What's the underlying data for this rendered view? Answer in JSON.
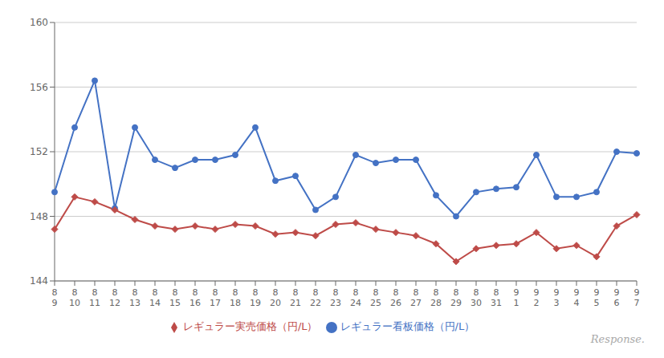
{
  "chart_data": {
    "type": "line",
    "categories": [
      "8\n9",
      "8\n10",
      "8\n11",
      "8\n12",
      "8\n13",
      "8\n14",
      "8\n15",
      "8\n16",
      "8\n17",
      "8\n18",
      "8\n19",
      "8\n20",
      "8\n21",
      "8\n22",
      "8\n23",
      "8\n24",
      "8\n25",
      "8\n26",
      "8\n27",
      "8\n28",
      "8\n29",
      "8\n30",
      "8\n31",
      "9\n1",
      "9\n2",
      "9\n3",
      "9\n4",
      "9\n5",
      "9\n6",
      "9\n7"
    ],
    "series": [
      {
        "name": "レギュラー看板価格（円/L）",
        "color": "#4472C4",
        "marker": "circle",
        "values": [
          149.5,
          153.5,
          156.4,
          148.5,
          153.5,
          151.5,
          151.0,
          151.5,
          151.5,
          151.8,
          153.5,
          150.2,
          150.5,
          148.4,
          149.2,
          151.8,
          151.3,
          151.5,
          151.5,
          149.3,
          148.0,
          149.5,
          149.7,
          149.8,
          151.8,
          149.2,
          149.2,
          149.5,
          152.0,
          151.9
        ]
      },
      {
        "name": "レギュラー実売価格（円/L）",
        "color": "#BE4B48",
        "marker": "diamond",
        "values": [
          147.2,
          149.2,
          148.9,
          148.4,
          147.8,
          147.4,
          147.2,
          147.4,
          147.2,
          147.5,
          147.4,
          146.9,
          147.0,
          146.8,
          147.5,
          147.6,
          147.2,
          147.0,
          146.8,
          146.3,
          145.2,
          146.0,
          146.2,
          146.3,
          147.0,
          146.0,
          146.2,
          145.5,
          147.4,
          148.1
        ]
      }
    ],
    "ylim": [
      144,
      160
    ],
    "yticks": [
      144,
      148,
      152,
      156,
      160
    ],
    "grid": true,
    "legend": "bottom",
    "annotations": [
      "Response."
    ]
  }
}
